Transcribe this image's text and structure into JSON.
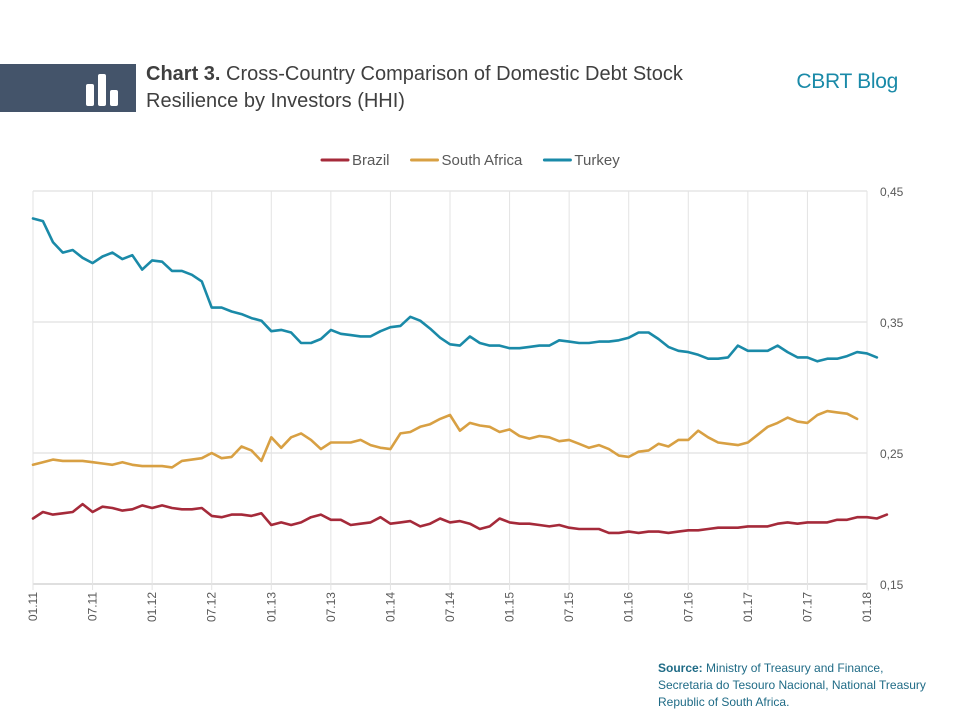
{
  "header": {
    "chart_number": "Chart 3.",
    "title": "Cross-Country Comparison of Domestic Debt Stock Resilience by Investors (HHI)",
    "brand": "CBRT Blog",
    "icon": "bar-chart-icon"
  },
  "source": {
    "label": "Source:",
    "text": "Ministry of Treasury and Finance, Secretaria do Tesouro Nacional, National Treasury Republic of South Africa."
  },
  "chart_data": {
    "type": "line",
    "title": "Chart 3. Cross-Country Comparison of Domestic Debt Stock Resilience by Investors (HHI)",
    "xlabel": "",
    "ylabel": "",
    "ylim": [
      0.15,
      0.45
    ],
    "y_ticks": [
      "0,45",
      "0,35",
      "0,25",
      "0,15"
    ],
    "y_tick_values": [
      0.45,
      0.35,
      0.25,
      0.15
    ],
    "y_axis_side": "right",
    "x_ticks": [
      "01.11",
      "07.11",
      "01.12",
      "07.12",
      "01.13",
      "07.13",
      "01.14",
      "07.14",
      "01.15",
      "07.15",
      "01.16",
      "07.16",
      "01.17",
      "07.17",
      "01.18"
    ],
    "grid": "horizontal",
    "legend_position": "top",
    "x_start": "2011-01",
    "series": [
      {
        "name": "Brazil",
        "color": "#a52a3a",
        "values": [
          0.2,
          0.205,
          0.203,
          0.204,
          0.205,
          0.211,
          0.205,
          0.209,
          0.208,
          0.206,
          0.207,
          0.21,
          0.208,
          0.21,
          0.208,
          0.207,
          0.207,
          0.208,
          0.202,
          0.201,
          0.203,
          0.203,
          0.202,
          0.204,
          0.195,
          0.197,
          0.195,
          0.197,
          0.201,
          0.203,
          0.199,
          0.199,
          0.195,
          0.196,
          0.197,
          0.201,
          0.196,
          0.197,
          0.198,
          0.194,
          0.196,
          0.2,
          0.197,
          0.198,
          0.196,
          0.192,
          0.194,
          0.2,
          0.197,
          0.196,
          0.196,
          0.195,
          0.194,
          0.195,
          0.193,
          0.192,
          0.192,
          0.192,
          0.189,
          0.189,
          0.19,
          0.189,
          0.19,
          0.19,
          0.189,
          0.19,
          0.191,
          0.191,
          0.192,
          0.193,
          0.193,
          0.193,
          0.194,
          0.194,
          0.194,
          0.196,
          0.197,
          0.196,
          0.197,
          0.197,
          0.197,
          0.199,
          0.199,
          0.201,
          0.201,
          0.2,
          0.203
        ]
      },
      {
        "name": "South Africa",
        "color": "#d8a043",
        "values": [
          0.241,
          0.243,
          0.245,
          0.244,
          0.244,
          0.244,
          0.243,
          0.242,
          0.241,
          0.243,
          0.241,
          0.24,
          0.24,
          0.24,
          0.239,
          0.244,
          0.245,
          0.246,
          0.25,
          0.246,
          0.247,
          0.255,
          0.252,
          0.244,
          0.262,
          0.254,
          0.262,
          0.265,
          0.26,
          0.253,
          0.258,
          0.258,
          0.258,
          0.26,
          0.256,
          0.254,
          0.253,
          0.265,
          0.266,
          0.27,
          0.272,
          0.276,
          0.279,
          0.267,
          0.273,
          0.271,
          0.27,
          0.266,
          0.268,
          0.263,
          0.261,
          0.263,
          0.262,
          0.259,
          0.26,
          0.257,
          0.254,
          0.256,
          0.253,
          0.248,
          0.247,
          0.251,
          0.252,
          0.257,
          0.255,
          0.26,
          0.26,
          0.267,
          0.262,
          0.258,
          0.257,
          0.256,
          0.258,
          0.264,
          0.27,
          0.273,
          0.277,
          0.274,
          0.273,
          0.279,
          0.282,
          0.281,
          0.28,
          0.276
        ]
      },
      {
        "name": "Turkey",
        "color": "#1a8aa8",
        "values": [
          0.429,
          0.427,
          0.411,
          0.403,
          0.405,
          0.399,
          0.395,
          0.4,
          0.403,
          0.398,
          0.401,
          0.39,
          0.397,
          0.396,
          0.389,
          0.389,
          0.386,
          0.381,
          0.361,
          0.361,
          0.358,
          0.356,
          0.353,
          0.351,
          0.343,
          0.344,
          0.342,
          0.334,
          0.334,
          0.337,
          0.344,
          0.341,
          0.34,
          0.339,
          0.339,
          0.343,
          0.346,
          0.347,
          0.354,
          0.351,
          0.345,
          0.338,
          0.333,
          0.332,
          0.339,
          0.334,
          0.332,
          0.332,
          0.33,
          0.33,
          0.331,
          0.332,
          0.332,
          0.336,
          0.335,
          0.334,
          0.334,
          0.335,
          0.335,
          0.336,
          0.338,
          0.342,
          0.342,
          0.337,
          0.331,
          0.328,
          0.327,
          0.325,
          0.322,
          0.322,
          0.323,
          0.332,
          0.328,
          0.328,
          0.328,
          0.332,
          0.327,
          0.323,
          0.323,
          0.32,
          0.322,
          0.322,
          0.324,
          0.327,
          0.326,
          0.323
        ]
      }
    ]
  }
}
